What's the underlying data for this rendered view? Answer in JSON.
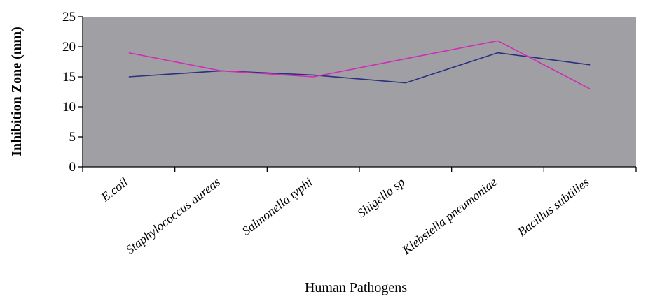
{
  "chart_data": {
    "type": "line",
    "title": "",
    "xlabel": "Human Pathogens",
    "ylabel": "Inhibition Zone (mm)",
    "ylim": [
      0,
      25
    ],
    "yticks": [
      0,
      5,
      10,
      15,
      20,
      25
    ],
    "categories": [
      "E.coil",
      "Staphylococcus aureas",
      "Salmonella typhi",
      "Shigella sp",
      "Klebsiella pneumoniae",
      "Bacillus subtilies"
    ],
    "series": [
      {
        "color": "#2b2f80",
        "values": [
          15.0,
          16.0,
          15.3,
          14.0,
          19.0,
          17.0
        ]
      },
      {
        "color": "#d12bb8",
        "values": [
          19.0,
          16.0,
          15.0,
          18.0,
          21.0,
          13.0
        ]
      }
    ],
    "grid": false,
    "plot_background": "#a0a0a4"
  }
}
